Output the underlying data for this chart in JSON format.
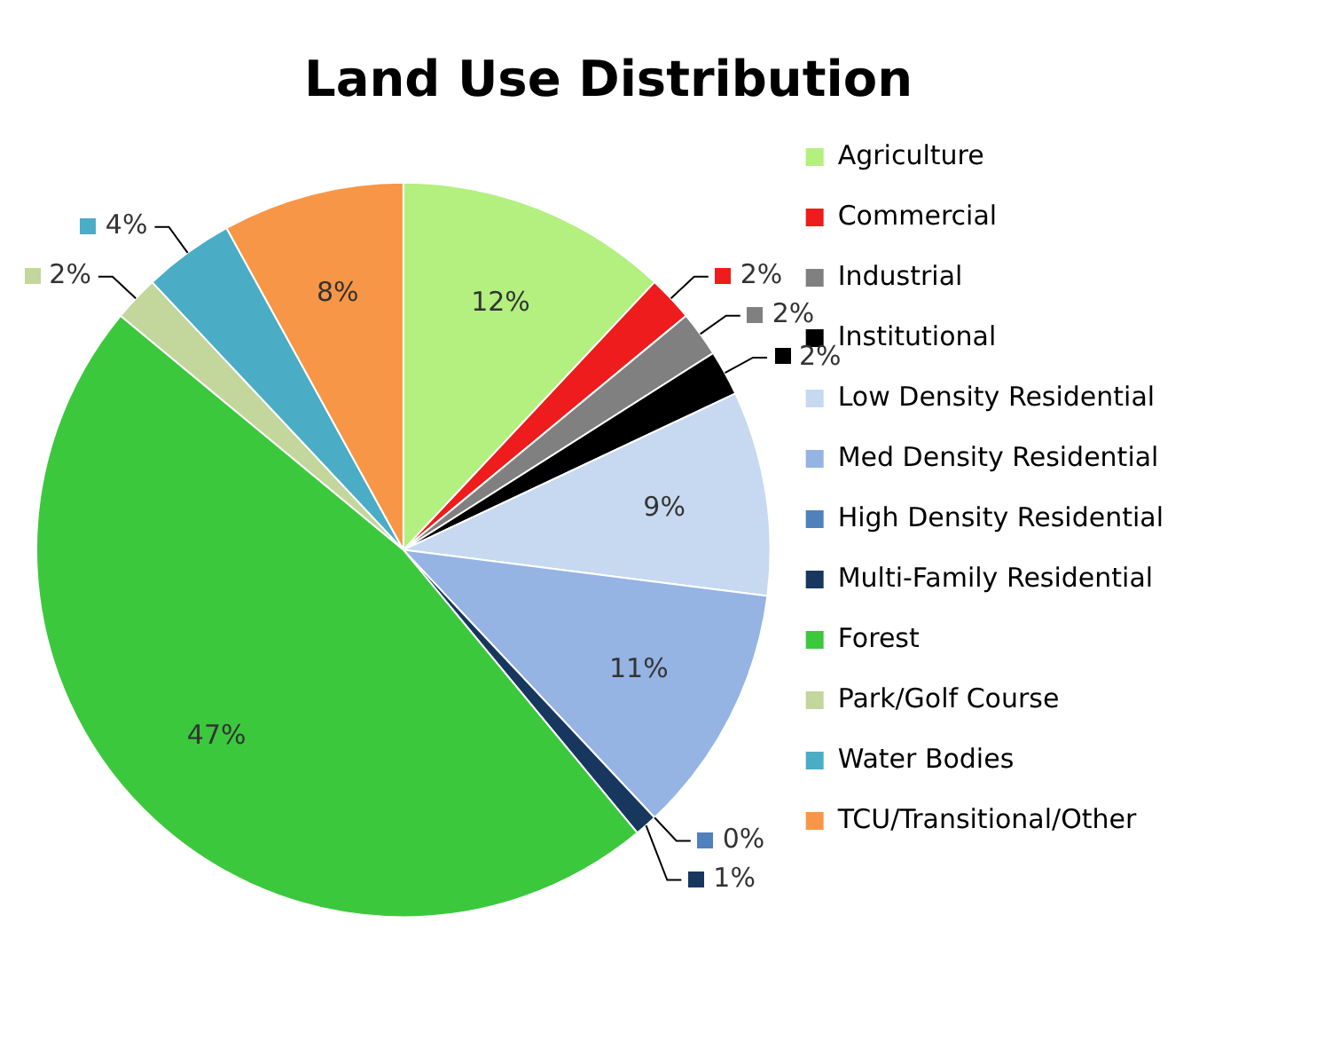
{
  "chart_data": {
    "type": "pie",
    "title": "Land Use Distribution",
    "categories": [
      "Agriculture",
      "Commercial",
      "Industrial",
      "Institutional",
      "Low Density Residential",
      "Med Density Residential",
      "High Density Residential",
      "Multi-Family Residential",
      "Forest",
      "Park/Golf Course",
      "Water Bodies",
      "TCU/Transitional/Other"
    ],
    "values": [
      12,
      2,
      2,
      2,
      9,
      11,
      0,
      1,
      47,
      2,
      4,
      8
    ],
    "value_labels": [
      "12%",
      "2%",
      "2%",
      "2%",
      "9%",
      "11%",
      "0%",
      "1%",
      "47%",
      "2%",
      "4%",
      "8%"
    ],
    "colors": [
      "#b3f07f",
      "#ee1c1c",
      "#808080",
      "#000000",
      "#c6d9f1",
      "#95b3e3",
      "#4f81bd",
      "#17375e",
      "#3cc83c",
      "#c3d69b",
      "#4bacc6",
      "#f79646"
    ],
    "legend": "right"
  }
}
